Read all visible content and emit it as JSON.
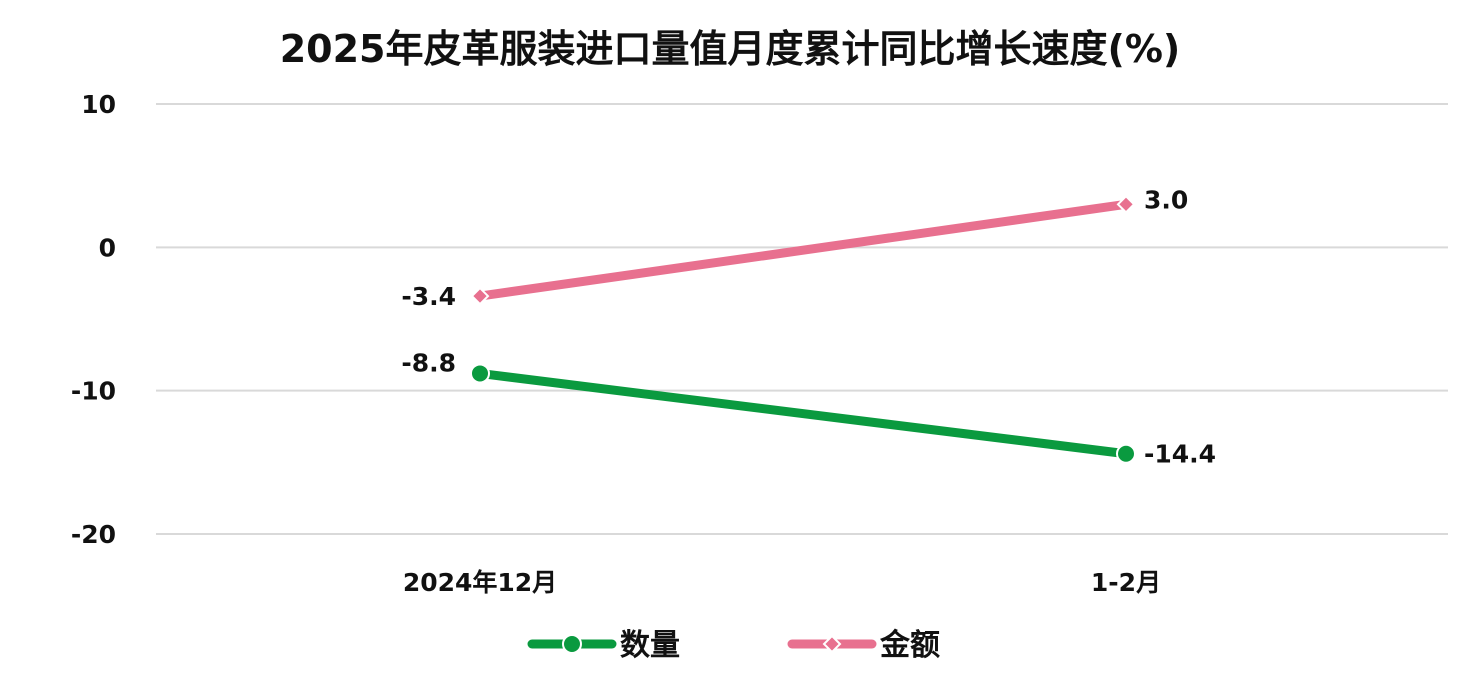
{
  "chart_data": {
    "type": "line",
    "title": "2025年皮革服装进口量值月度累计同比增长速度(%)",
    "xlabel": "",
    "ylabel": "",
    "categories": [
      "2024年12月",
      "1-2月"
    ],
    "ylim": [
      -20,
      10
    ],
    "yticks": [
      10,
      0,
      -10,
      -20
    ],
    "grid": true,
    "legend_position": "bottom",
    "series": [
      {
        "name": "数量",
        "values": [
          -8.8,
          -14.4
        ],
        "labels": [
          "-8.8",
          "-14.4"
        ],
        "color": "#0a9a3f",
        "marker": "circle"
      },
      {
        "name": "金额",
        "values": [
          -3.4,
          3.0
        ],
        "labels": [
          "-3.4",
          "3.0"
        ],
        "color": "#e8708f",
        "marker": "diamond"
      }
    ]
  }
}
